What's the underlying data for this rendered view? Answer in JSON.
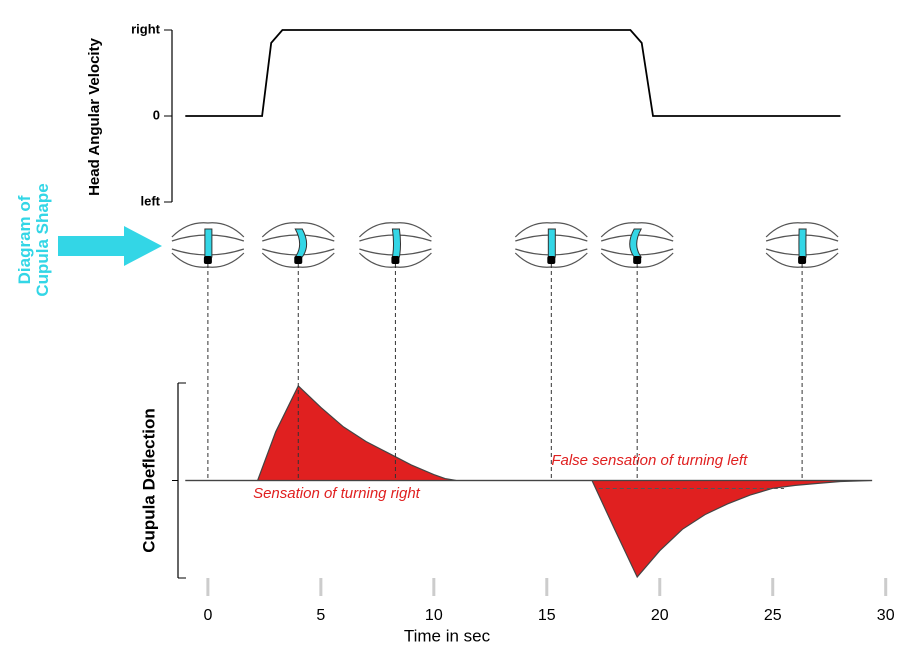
{
  "chart_data": [
    {
      "type": "line",
      "y_label": "Head Angular Velocity",
      "x": [
        -1,
        2.4,
        2.8,
        3.3,
        18.7,
        19.2,
        19.7,
        28
      ],
      "values": [
        0,
        0,
        0.85,
        1,
        1,
        0.85,
        0,
        0
      ],
      "xlim": [
        -1.5,
        30.5
      ],
      "ylim": [
        -1,
        1
      ],
      "yticks": [
        {
          "value": 1,
          "label": "right"
        },
        0,
        {
          "value": -1,
          "label": "left"
        }
      ],
      "color": "#000000"
    },
    {
      "type": "area",
      "y_label": "Cupula Deflection",
      "x_label": "Time in sec",
      "x": [
        -1,
        2,
        2.2,
        3,
        4,
        5,
        6,
        7,
        8,
        9,
        10,
        10.5,
        11,
        17,
        18,
        19,
        20,
        21,
        22,
        23,
        24,
        25,
        26,
        27,
        28,
        29.4
      ],
      "values": [
        0,
        0,
        0,
        0.5,
        0.97,
        0.75,
        0.55,
        0.4,
        0.28,
        0.16,
        0.06,
        0.02,
        0,
        0,
        -0.5,
        -0.99,
        -0.72,
        -0.5,
        -0.35,
        -0.24,
        -0.15,
        -0.08,
        -0.05,
        -0.03,
        -0.01,
        0
      ],
      "xlim": [
        -1.5,
        30.5
      ],
      "ylim": [
        -1,
        1
      ],
      "xticks": [
        0,
        5,
        10,
        15,
        20,
        25,
        30
      ],
      "color": "#e02020",
      "annotations": [
        {
          "text": "Sensation of turning right",
          "x": 2,
          "y": -0.14
        },
        {
          "text": "False sensation of turning left",
          "x": 15.2,
          "y": 0.2
        }
      ],
      "diagram_label": [
        "Diagram of",
        "Cupula Shape"
      ],
      "diagram_color": "#33d6e6",
      "diagram_times": [
        0,
        4,
        8.3,
        15.2,
        19,
        26.3
      ]
    }
  ]
}
